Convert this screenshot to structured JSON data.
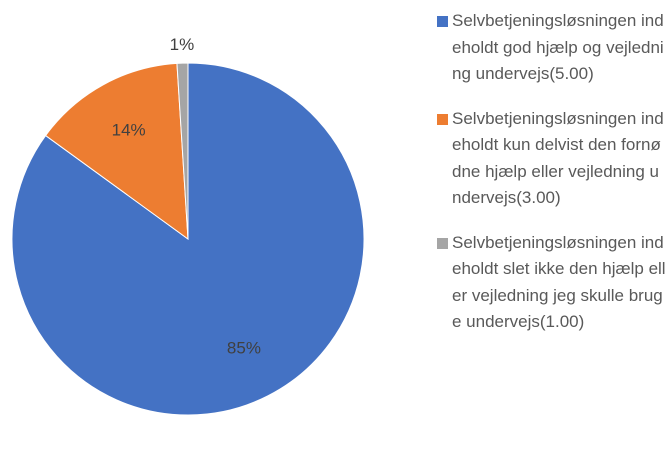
{
  "chart_data": {
    "type": "pie",
    "categories": [
      "Selvbetjeningsløsningen indeholdt god hjælp og vejledning undervejs(5.00)",
      "Selvbetjeningsløsningen indeholdt kun delvist den fornødne hjælp eller vejledning undervejs(3.00)",
      "Selvbetjeningsløsningen indeholdt slet ikke den hjælp eller vejledning jeg skulle bruge undervejs(1.00)"
    ],
    "values": [
      85,
      14,
      1
    ],
    "value_labels": [
      "85%",
      "14%",
      "1%"
    ],
    "colors": [
      "#4472c4",
      "#ed7d31",
      "#a5a5a5"
    ],
    "legend": "right"
  }
}
